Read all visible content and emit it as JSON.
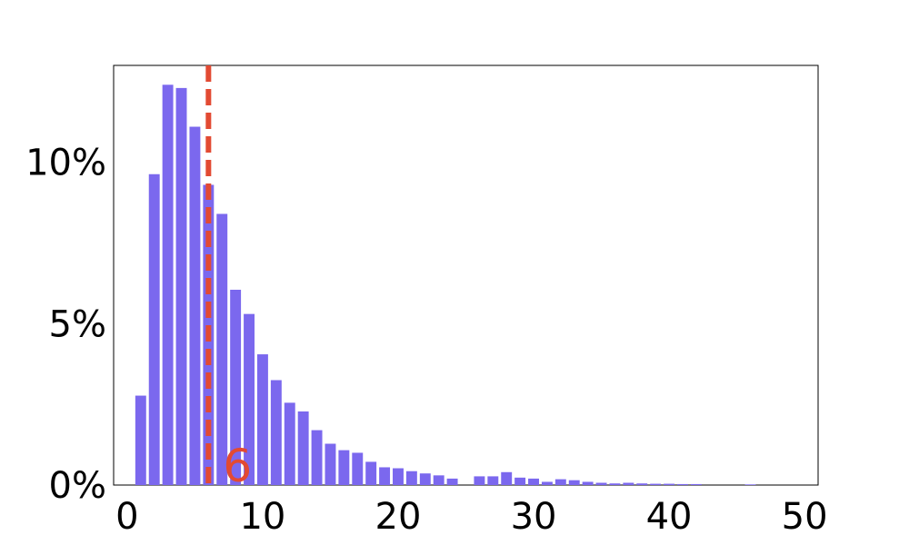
{
  "chart_data": {
    "type": "bar",
    "title": "",
    "xlabel": "",
    "ylabel": "",
    "xlim": [
      -1,
      51
    ],
    "ylim": [
      0,
      13
    ],
    "x_ticks": [
      0,
      10,
      20,
      30,
      40,
      50
    ],
    "x_tick_labels": [
      "0",
      "10",
      "20",
      "30",
      "40",
      "50"
    ],
    "y_ticks": [
      0,
      5,
      10
    ],
    "y_tick_labels": [
      "0%",
      "5%",
      "10%"
    ],
    "grid": false,
    "legend": "none",
    "bar_color": "#7b68ee",
    "x": [
      1,
      2,
      3,
      4,
      5,
      6,
      7,
      8,
      9,
      10,
      11,
      12,
      13,
      14,
      15,
      16,
      17,
      18,
      19,
      20,
      21,
      22,
      23,
      24,
      25,
      26,
      27,
      28,
      29,
      30,
      31,
      32,
      33,
      34,
      35,
      36,
      37,
      38,
      39,
      40,
      41,
      42,
      43,
      44,
      45,
      46,
      47,
      48,
      49
    ],
    "values": [
      2.77,
      9.63,
      12.4,
      12.3,
      11.1,
      9.3,
      8.4,
      6.05,
      5.3,
      4.05,
      3.25,
      2.55,
      2.28,
      1.7,
      1.28,
      1.08,
      1.0,
      0.72,
      0.55,
      0.52,
      0.43,
      0.36,
      0.3,
      0.2,
      0,
      0.27,
      0.27,
      0.4,
      0.23,
      0.2,
      0.1,
      0.18,
      0.15,
      0.1,
      0.07,
      0.05,
      0.07,
      0.05,
      0.04,
      0.04,
      0.03,
      0.03,
      0,
      0,
      0,
      0.02,
      0,
      0,
      0
    ],
    "reference_line": {
      "x": 6,
      "label": "6",
      "color": "#e24a33",
      "style": "dashed"
    }
  }
}
